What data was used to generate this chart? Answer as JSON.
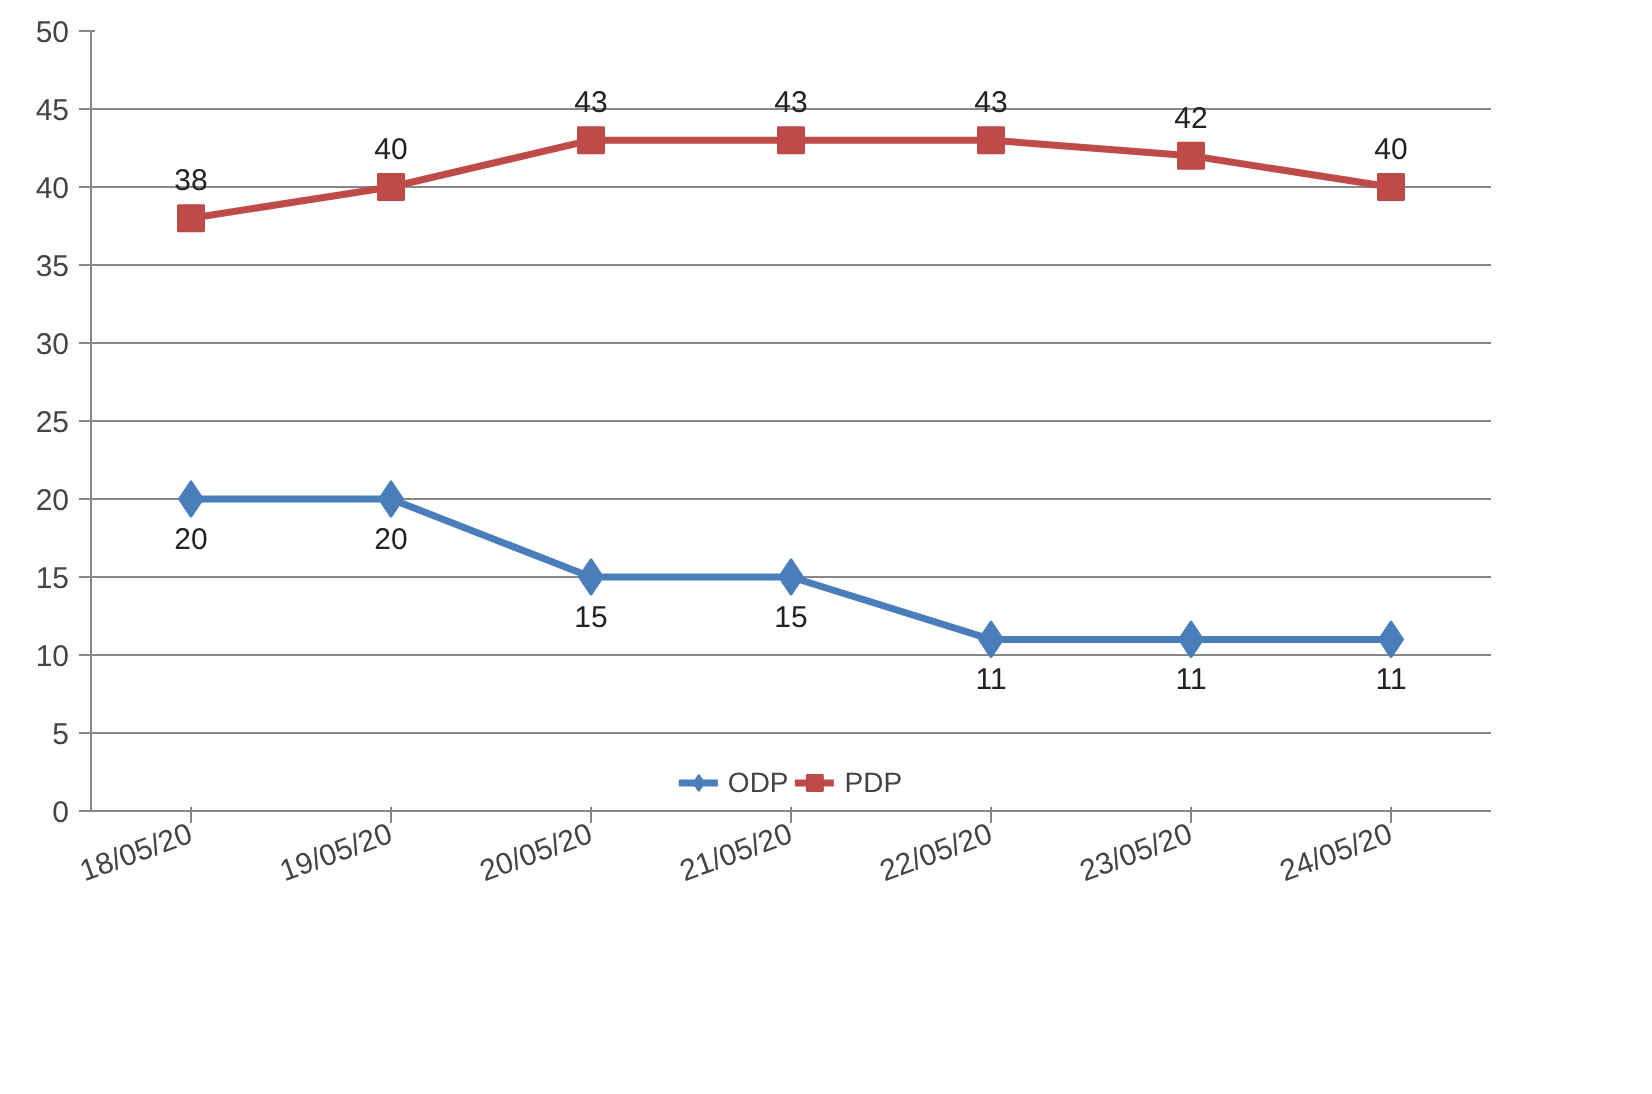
{
  "chart_data": {
    "type": "line",
    "categories": [
      "18/05/20",
      "19/05/20",
      "20/05/20",
      "21/05/20",
      "22/05/20",
      "23/05/20",
      "24/05/20"
    ],
    "series": [
      {
        "name": "ODP",
        "color": "#4a7ebb",
        "marker": "diamond",
        "values": [
          20,
          20,
          15,
          15,
          11,
          11,
          11
        ]
      },
      {
        "name": "PDP",
        "color": "#be4b48",
        "marker": "square",
        "values": [
          38,
          40,
          43,
          43,
          43,
          42,
          40
        ]
      }
    ],
    "ylim": [
      0,
      50
    ],
    "yticks": [
      0,
      5,
      10,
      15,
      20,
      25,
      30,
      35,
      40,
      45,
      50
    ],
    "grid": "y",
    "legend": "bottom",
    "data_labels": true,
    "line_style": "solid"
  }
}
